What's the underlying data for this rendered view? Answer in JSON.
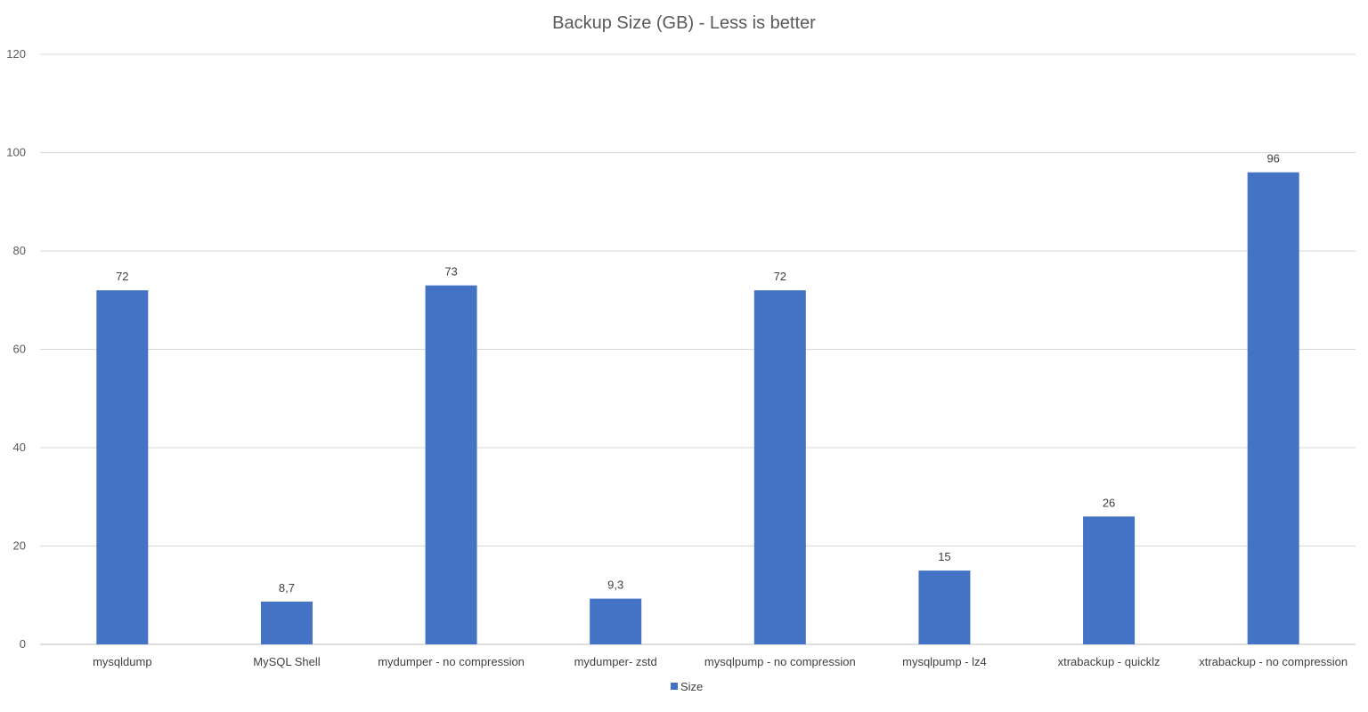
{
  "chart_data": {
    "type": "bar",
    "title": "Backup Size (GB) - Less is better",
    "xlabel": "",
    "ylabel": "",
    "ylim": [
      0,
      120
    ],
    "yticks": [
      0,
      20,
      40,
      60,
      80,
      100,
      120
    ],
    "grid": true,
    "legend_position": "bottom",
    "categories": [
      "mysqldump",
      "MySQL Shell",
      "mydumper - no compression",
      "mydumper- zstd",
      "mysqlpump - no compression",
      "mysqlpump - lz4",
      "xtrabackup - quicklz",
      "xtrabackup - no compression"
    ],
    "series": [
      {
        "name": "Size",
        "color": "#4472c4",
        "values": [
          72,
          8.7,
          73,
          9.3,
          72,
          15,
          26,
          96
        ],
        "data_labels": [
          "72",
          "8,7",
          "73",
          "9,3",
          "72",
          "15",
          "26",
          "96"
        ]
      }
    ]
  }
}
